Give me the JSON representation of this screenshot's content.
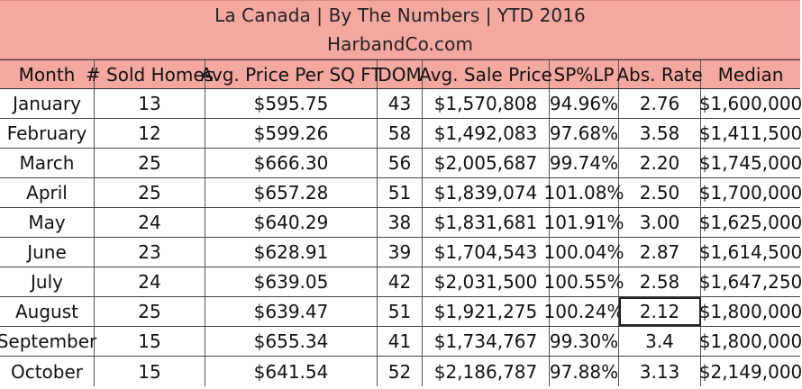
{
  "title": "La Canada |  By The Numbers  |  YTD 2016",
  "subtitle": "HarbandCo.com",
  "columns": [
    "Month",
    "# Sold Homes",
    "Avg. Price Per SQ FT",
    "DOM",
    "Avg. Sale Price",
    "SP%LP",
    "Abs. Rate",
    "Median"
  ],
  "rows": [
    {
      "month": "January",
      "sold": "13",
      "ppsf": "$595.75",
      "dom": "43",
      "avg_sale": "$1,570,808",
      "sp_lp": "94.96%",
      "abs_rate": "2.76",
      "median": "$1,600,000"
    },
    {
      "month": "February",
      "sold": "12",
      "ppsf": "$599.26",
      "dom": "58",
      "avg_sale": "$1,492,083",
      "sp_lp": "97.68%",
      "abs_rate": "3.58",
      "median": "$1,411,500"
    },
    {
      "month": "March",
      "sold": "25",
      "ppsf": "$666.30",
      "dom": "56",
      "avg_sale": "$2,005,687",
      "sp_lp": "99.74%",
      "abs_rate": "2.20",
      "median": "$1,745,000"
    },
    {
      "month": "April",
      "sold": "25",
      "ppsf": "$657.28",
      "dom": "51",
      "avg_sale": "$1,839,074",
      "sp_lp": "101.08%",
      "abs_rate": "2.50",
      "median": "$1,700,000"
    },
    {
      "month": "May",
      "sold": "24",
      "ppsf": "$640.29",
      "dom": "38",
      "avg_sale": "$1,831,681",
      "sp_lp": "101.91%",
      "abs_rate": "3.00",
      "median": "$1,625,000"
    },
    {
      "month": "June",
      "sold": "23",
      "ppsf": "$628.91",
      "dom": "39",
      "avg_sale": "$1,704,543",
      "sp_lp": "100.04%",
      "abs_rate": "2.87",
      "median": "$1,614,500"
    },
    {
      "month": "July",
      "sold": "24",
      "ppsf": "$639.05",
      "dom": "42",
      "avg_sale": "$2,031,500",
      "sp_lp": "100.55%",
      "abs_rate": "2.58",
      "median": "$1,647,250"
    },
    {
      "month": "August",
      "sold": "25",
      "ppsf": "$639.47",
      "dom": "51",
      "avg_sale": "$1,921,275",
      "sp_lp": "100.24%",
      "abs_rate": "2.12",
      "median": "$1,800,000"
    },
    {
      "month": "September",
      "sold": "15",
      "ppsf": "$655.34",
      "dom": "41",
      "avg_sale": "$1,734,767",
      "sp_lp": "99.30%",
      "abs_rate": "3.4",
      "median": "$1,800,000"
    },
    {
      "month": "October",
      "sold": "15",
      "ppsf": "$641.54",
      "dom": "52",
      "avg_sale": "$2,186,787",
      "sp_lp": "97.88%",
      "abs_rate": "3.13",
      "median": "$2,149,000"
    }
  ],
  "colors": {
    "header_bg": "#f4a8a0",
    "accent_tab": "#f6b093"
  }
}
